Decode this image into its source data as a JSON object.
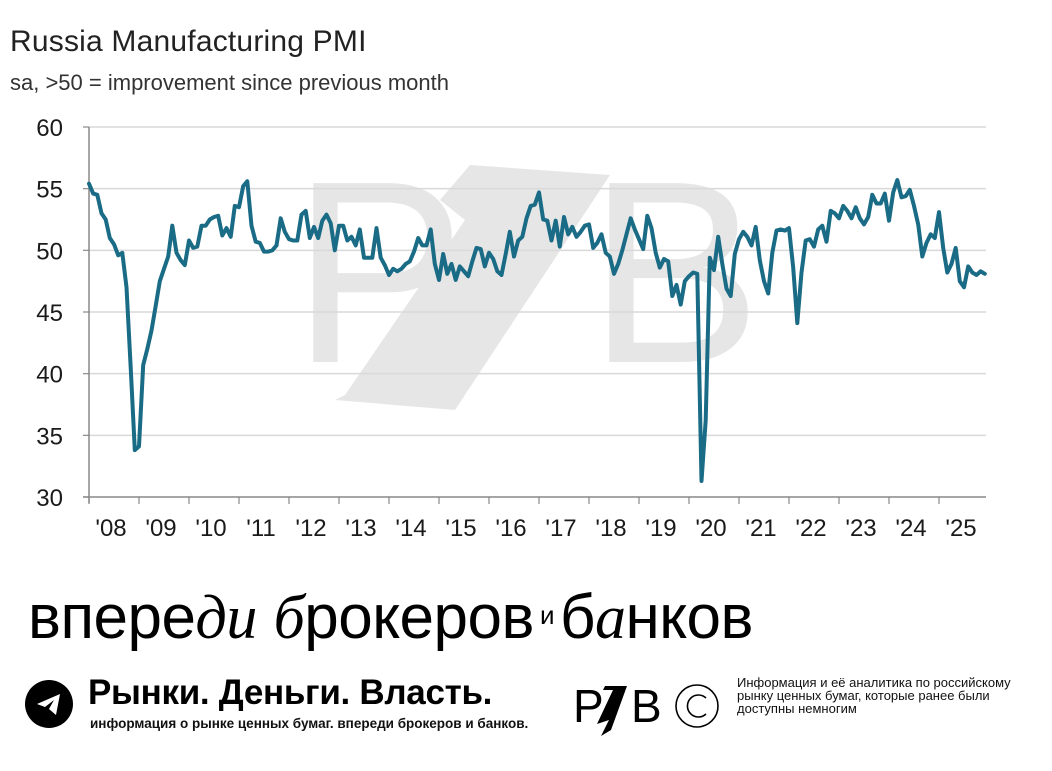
{
  "header": {
    "title": "Russia Manufacturing PMI",
    "subtitle": "sa, >50 = improvement since previous month"
  },
  "watermark": {
    "text": "RZB"
  },
  "chart_data": {
    "type": "line",
    "title": "Russia Manufacturing PMI",
    "subtitle": "sa, >50 = improvement since previous month",
    "xlabel": "",
    "ylabel": "",
    "ylim": [
      30,
      60
    ],
    "yticks": [
      30,
      35,
      40,
      45,
      50,
      55,
      60
    ],
    "xticks": [
      "'08",
      "'09",
      "'10",
      "'11",
      "'12",
      "'13",
      "'14",
      "'15",
      "'16",
      "'17",
      "'18",
      "'19",
      "'20",
      "'21",
      "'22",
      "'23",
      "'24",
      "'25"
    ],
    "grid": "horizontal",
    "legend": "none",
    "frequency": "monthly",
    "start": "2008-01",
    "line_color": "#1a6b85",
    "series": [
      {
        "name": "Russia Manufacturing PMI",
        "values": [
          55.4,
          54.6,
          54.5,
          53.0,
          52.5,
          51.0,
          50.5,
          49.6,
          49.8,
          47.0,
          40.5,
          33.8,
          34.1,
          40.7,
          42.0,
          43.5,
          45.5,
          47.5,
          48.5,
          49.5,
          52.0,
          49.8,
          49.2,
          48.8,
          50.8,
          50.2,
          50.3,
          52.0,
          52.0,
          52.5,
          52.7,
          52.8,
          51.2,
          51.8,
          51.1,
          53.6,
          53.5,
          55.2,
          55.6,
          52.0,
          50.7,
          50.6,
          49.9,
          49.9,
          50.0,
          50.4,
          52.6,
          51.5,
          50.9,
          50.8,
          50.8,
          52.9,
          53.2,
          51.0,
          51.9,
          51.0,
          52.4,
          52.9,
          52.2,
          50.0,
          52.0,
          52.0,
          50.8,
          51.1,
          50.4,
          51.7,
          49.4,
          49.4,
          49.4,
          51.8,
          49.4,
          48.8,
          48.0,
          48.5,
          48.3,
          48.5,
          48.9,
          49.1,
          49.9,
          51.0,
          50.4,
          50.4,
          51.7,
          48.9,
          47.6,
          49.7,
          48.1,
          48.9,
          47.6,
          48.7,
          48.3,
          47.9,
          49.1,
          50.2,
          50.1,
          48.7,
          49.8,
          49.3,
          48.3,
          48.0,
          49.7,
          51.5,
          49.5,
          50.8,
          51.1,
          52.6,
          53.6,
          53.7,
          54.7,
          52.5,
          52.4,
          50.8,
          52.4,
          50.3,
          52.7,
          51.3,
          51.9,
          51.1,
          51.5,
          52.0,
          52.1,
          50.2,
          50.6,
          51.3,
          49.8,
          49.5,
          48.1,
          48.9,
          50.0,
          51.3,
          52.6,
          51.7,
          50.9,
          50.1,
          52.8,
          51.8,
          49.8,
          48.6,
          49.3,
          49.1,
          46.3,
          47.2,
          45.6,
          47.5,
          47.9,
          48.2,
          48.1,
          31.3,
          36.2,
          49.4,
          48.4,
          51.1,
          48.9,
          46.9,
          46.3,
          49.7,
          50.9,
          51.5,
          51.1,
          50.4,
          51.9,
          49.2,
          47.5,
          46.5,
          49.8,
          51.6,
          51.7,
          51.6,
          51.8,
          48.6,
          44.1,
          48.2,
          50.8,
          50.9,
          50.3,
          51.7,
          52.0,
          50.7,
          53.2,
          53.0,
          52.6,
          53.6,
          53.2,
          52.6,
          53.5,
          52.6,
          52.1,
          52.7,
          54.5,
          53.8,
          53.8,
          54.6,
          52.4,
          54.7,
          55.7,
          54.3,
          54.4,
          54.9,
          53.6,
          52.1,
          49.5,
          50.6,
          51.3,
          51.0,
          53.1,
          50.2,
          48.2,
          48.9,
          50.2,
          47.5,
          47.0,
          48.7,
          48.2,
          48.0,
          48.3,
          48.1
        ]
      }
    ]
  },
  "footer": {
    "slogan_parts": [
      "впере",
      "ди",
      " ",
      "б",
      "рокеров",
      "и",
      "б",
      "а",
      "нков"
    ],
    "brand_title": "Рынки. Деньги. Власть.",
    "brand_subtitle": "информация о рынке ценных бумаг. впереди брокеров и банков.",
    "logo_text": "RZB",
    "logo_description": "Информация и её аналитика по российскому рынку ценных бумаг, которые ранее были доступны немногим",
    "telegram_icon": "telegram-icon",
    "copyright_icon": "copyright-icon"
  }
}
